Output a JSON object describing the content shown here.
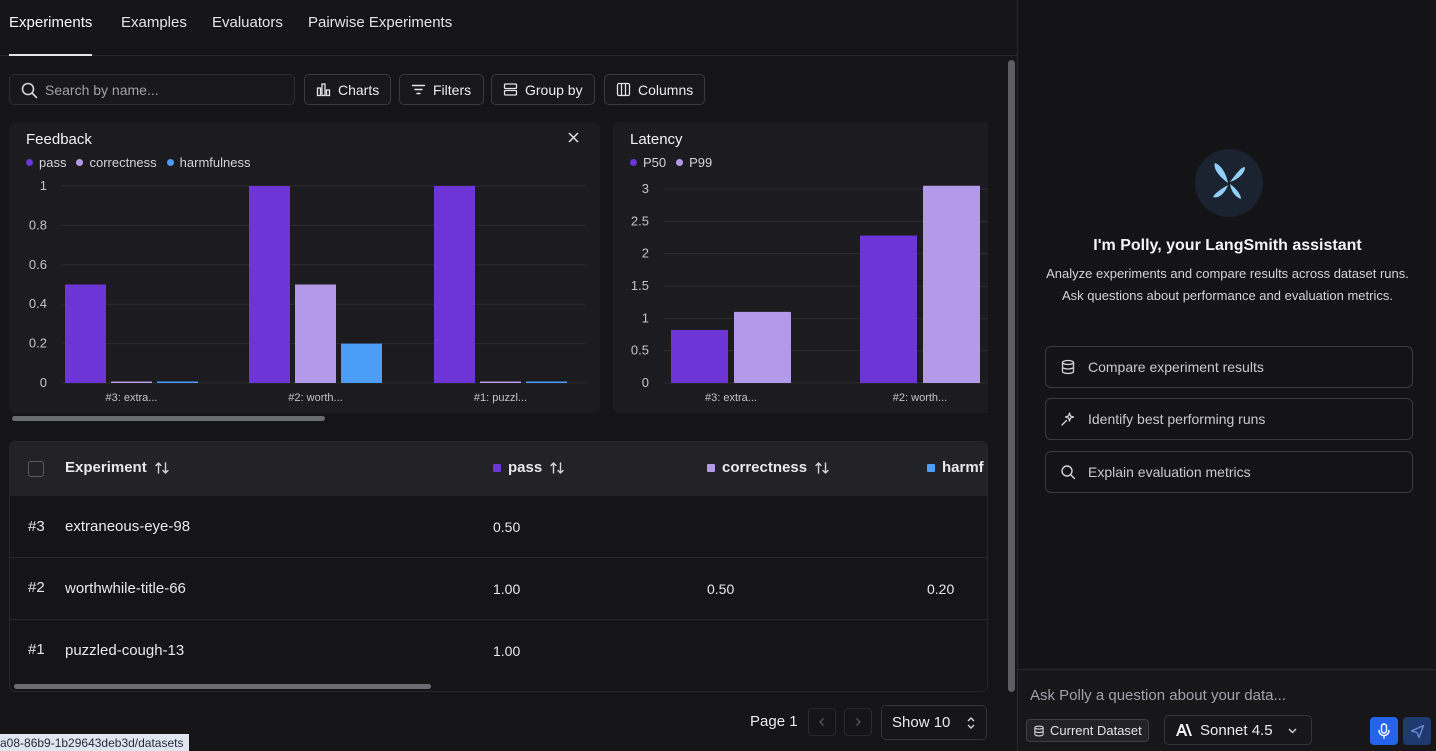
{
  "tabs": [
    "Experiments",
    "Examples",
    "Evaluators",
    "Pairwise Experiments"
  ],
  "toolbar": {
    "search_placeholder": "Search by name...",
    "charts": "Charts",
    "filters": "Filters",
    "group_by": "Group by",
    "columns": "Columns"
  },
  "chart_data": [
    {
      "type": "bar",
      "title": "Feedback",
      "categories": [
        "#3: extra...",
        "#2: worth...",
        "#1: puzzl..."
      ],
      "series": [
        {
          "name": "pass",
          "values": [
            0.5,
            1.0,
            1.0
          ],
          "color": "#6d35d6"
        },
        {
          "name": "correctness",
          "values": [
            0,
            0.5,
            0
          ],
          "color": "#b39ae8"
        },
        {
          "name": "harmfulness",
          "values": [
            0,
            0.2,
            0
          ],
          "color": "#4c9df5"
        }
      ],
      "yticks": [
        "0",
        "0.2",
        "0.4",
        "0.6",
        "0.8",
        "1"
      ],
      "ylim": [
        0,
        1
      ]
    },
    {
      "type": "bar",
      "title": "Latency",
      "categories": [
        "#3: extra...",
        "#2: worth..."
      ],
      "series": [
        {
          "name": "P50",
          "values": [
            0.82,
            2.28
          ],
          "color": "#6d35d6"
        },
        {
          "name": "P99",
          "values": [
            1.1,
            3.05
          ],
          "color": "#b39ae8"
        }
      ],
      "yticks": [
        "0",
        "0.5",
        "1",
        "1.5",
        "2",
        "2.5",
        "3"
      ],
      "ylim": [
        0,
        3
      ]
    }
  ],
  "table": {
    "headers": {
      "experiment": "Experiment",
      "pass": "pass",
      "correctness": "correctness",
      "harmfulness": "harmf"
    },
    "header_colors": {
      "pass": "#6d35d6",
      "correctness": "#b39ae8",
      "harmfulness": "#4c9df5"
    },
    "rows": [
      {
        "num": "#3",
        "name": "extraneous-eye-98",
        "pass": "0.50",
        "correctness": "",
        "harmfulness": ""
      },
      {
        "num": "#2",
        "name": "worthwhile-title-66",
        "pass": "1.00",
        "correctness": "0.50",
        "harmfulness": "0.20"
      },
      {
        "num": "#1",
        "name": "puzzled-cough-13",
        "pass": "1.00",
        "correctness": "",
        "harmfulness": ""
      }
    ]
  },
  "pager": {
    "page": "Page 1",
    "show": "Show 10"
  },
  "status_url": "a08-86b9-1b29643deb3d/datasets",
  "polly": {
    "title": "I'm Polly, your LangSmith assistant",
    "description": "Analyze experiments and compare results across dataset runs. Ask questions about performance and evaluation metrics.",
    "suggestions": [
      {
        "label": "Compare experiment results",
        "icon": "database-icon"
      },
      {
        "label": "Identify best performing runs",
        "icon": "sparkle-icon"
      },
      {
        "label": "Explain evaluation metrics",
        "icon": "search-icon"
      }
    ],
    "input_placeholder": "Ask Polly a question about your data...",
    "dataset_chip": "Current Dataset",
    "model": "Sonnet 4.5"
  }
}
